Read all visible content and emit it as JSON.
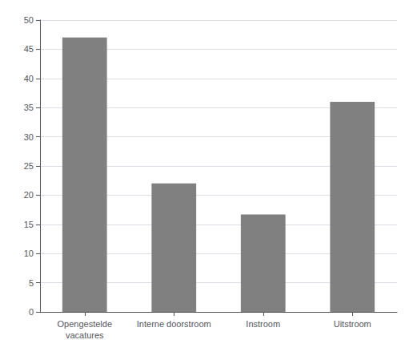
{
  "chart_data": {
    "type": "bar",
    "categories": [
      "Opengestelde\nvacatures",
      "Interne doorstroom",
      "Instroom",
      "Uitstroom"
    ],
    "values": [
      47,
      22,
      16.7,
      36
    ],
    "color": "#808080",
    "ylim": [
      0,
      50
    ],
    "yticks": [
      0,
      5,
      10,
      15,
      20,
      25,
      30,
      35,
      40,
      45,
      50
    ],
    "grid": true
  }
}
